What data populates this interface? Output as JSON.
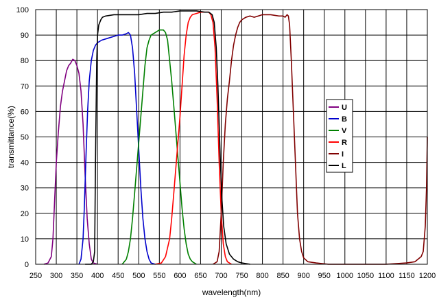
{
  "chart_data": {
    "type": "line",
    "title": "",
    "xlabel": "wavelength(nm)",
    "ylabel": "transmittance(%)",
    "xlim": [
      250,
      1200
    ],
    "ylim": [
      0,
      100
    ],
    "x_ticks": [
      "250",
      "300",
      "350",
      "400",
      "450",
      "500",
      "550",
      "600",
      "650",
      "700",
      "750",
      "800",
      "850",
      "900",
      "950",
      "1000",
      "1050",
      "1100",
      "1150",
      "1200"
    ],
    "y_ticks": [
      "0",
      "10",
      "20",
      "30",
      "40",
      "50",
      "60",
      "70",
      "80",
      "90",
      "100"
    ],
    "grid": true,
    "legend_position": "right",
    "series": [
      {
        "name": "U",
        "color": "#800080",
        "points": [
          [
            270,
            0
          ],
          [
            280,
            0.5
          ],
          [
            288,
            3
          ],
          [
            292,
            10
          ],
          [
            296,
            25
          ],
          [
            300,
            40
          ],
          [
            305,
            52
          ],
          [
            310,
            62
          ],
          [
            315,
            68
          ],
          [
            320,
            72
          ],
          [
            325,
            76
          ],
          [
            330,
            78
          ],
          [
            335,
            79
          ],
          [
            340,
            80.5
          ],
          [
            345,
            80
          ],
          [
            350,
            78
          ],
          [
            355,
            75
          ],
          [
            360,
            68
          ],
          [
            365,
            55
          ],
          [
            370,
            35
          ],
          [
            375,
            18
          ],
          [
            380,
            8
          ],
          [
            385,
            2
          ],
          [
            390,
            0.5
          ],
          [
            400,
            0
          ]
        ]
      },
      {
        "name": "B",
        "color": "#0000cc",
        "points": [
          [
            355,
            0
          ],
          [
            360,
            2
          ],
          [
            365,
            10
          ],
          [
            368,
            22
          ],
          [
            372,
            42
          ],
          [
            376,
            60
          ],
          [
            380,
            72
          ],
          [
            385,
            80
          ],
          [
            390,
            84
          ],
          [
            395,
            86
          ],
          [
            400,
            87
          ],
          [
            410,
            88
          ],
          [
            420,
            88.5
          ],
          [
            430,
            89
          ],
          [
            440,
            89.5
          ],
          [
            450,
            90
          ],
          [
            460,
            90
          ],
          [
            470,
            90.5
          ],
          [
            475,
            91
          ],
          [
            480,
            90
          ],
          [
            485,
            85
          ],
          [
            490,
            75
          ],
          [
            495,
            60
          ],
          [
            500,
            45
          ],
          [
            505,
            30
          ],
          [
            510,
            18
          ],
          [
            515,
            10
          ],
          [
            520,
            5
          ],
          [
            525,
            2
          ],
          [
            530,
            0.5
          ],
          [
            540,
            0
          ]
        ]
      },
      {
        "name": "V",
        "color": "#008000",
        "points": [
          [
            460,
            0
          ],
          [
            470,
            2
          ],
          [
            475,
            5
          ],
          [
            480,
            10
          ],
          [
            485,
            18
          ],
          [
            490,
            28
          ],
          [
            495,
            38
          ],
          [
            500,
            48
          ],
          [
            505,
            58
          ],
          [
            510,
            68
          ],
          [
            515,
            78
          ],
          [
            520,
            85
          ],
          [
            525,
            88
          ],
          [
            530,
            90
          ],
          [
            540,
            91
          ],
          [
            550,
            92
          ],
          [
            560,
            92
          ],
          [
            565,
            91
          ],
          [
            570,
            88
          ],
          [
            575,
            80
          ],
          [
            580,
            72
          ],
          [
            585,
            62
          ],
          [
            590,
            52
          ],
          [
            595,
            42
          ],
          [
            600,
            32
          ],
          [
            605,
            22
          ],
          [
            610,
            14
          ],
          [
            615,
            8
          ],
          [
            620,
            4
          ],
          [
            625,
            2
          ],
          [
            630,
            1
          ],
          [
            640,
            0
          ]
        ]
      },
      {
        "name": "R",
        "color": "#ff0000",
        "points": [
          [
            540,
            0
          ],
          [
            555,
            0.5
          ],
          [
            565,
            3
          ],
          [
            575,
            10
          ],
          [
            580,
            18
          ],
          [
            585,
            28
          ],
          [
            590,
            38
          ],
          [
            595,
            48
          ],
          [
            600,
            58
          ],
          [
            605,
            70
          ],
          [
            610,
            82
          ],
          [
            615,
            90
          ],
          [
            620,
            95
          ],
          [
            625,
            97
          ],
          [
            630,
            98
          ],
          [
            640,
            98.5
          ],
          [
            650,
            99
          ],
          [
            660,
            99
          ],
          [
            670,
            99
          ],
          [
            675,
            98
          ],
          [
            680,
            95
          ],
          [
            685,
            85
          ],
          [
            690,
            65
          ],
          [
            695,
            40
          ],
          [
            700,
            20
          ],
          [
            705,
            8
          ],
          [
            710,
            3
          ],
          [
            715,
            1
          ],
          [
            725,
            0
          ]
        ]
      },
      {
        "name": "I",
        "color": "#800000",
        "points": [
          [
            680,
            0
          ],
          [
            690,
            1
          ],
          [
            695,
            5
          ],
          [
            700,
            20
          ],
          [
            705,
            40
          ],
          [
            710,
            55
          ],
          [
            715,
            65
          ],
          [
            720,
            72
          ],
          [
            725,
            80
          ],
          [
            730,
            86
          ],
          [
            735,
            90
          ],
          [
            740,
            93
          ],
          [
            745,
            95
          ],
          [
            750,
            96
          ],
          [
            760,
            97
          ],
          [
            770,
            97.5
          ],
          [
            780,
            97
          ],
          [
            790,
            97.5
          ],
          [
            800,
            98
          ],
          [
            820,
            98
          ],
          [
            840,
            97.5
          ],
          [
            850,
            97.5
          ],
          [
            855,
            97
          ],
          [
            860,
            98
          ],
          [
            863,
            97.5
          ],
          [
            866,
            94
          ],
          [
            870,
            80
          ],
          [
            875,
            60
          ],
          [
            880,
            40
          ],
          [
            885,
            20
          ],
          [
            890,
            10
          ],
          [
            895,
            5
          ],
          [
            900,
            2.5
          ],
          [
            910,
            1
          ],
          [
            930,
            0.5
          ],
          [
            960,
            0
          ],
          [
            1000,
            0
          ],
          [
            1100,
            0
          ],
          [
            1150,
            0.5
          ],
          [
            1170,
            1
          ],
          [
            1185,
            3
          ],
          [
            1190,
            5
          ],
          [
            1195,
            15
          ],
          [
            1198,
            30
          ],
          [
            1200,
            50
          ]
        ]
      },
      {
        "name": "L",
        "color": "#000000",
        "points": [
          [
            370,
            0
          ],
          [
            385,
            0
          ],
          [
            390,
            1
          ],
          [
            393,
            5
          ],
          [
            395,
            40
          ],
          [
            398,
            80
          ],
          [
            400,
            90
          ],
          [
            403,
            94
          ],
          [
            408,
            96
          ],
          [
            412,
            97
          ],
          [
            420,
            97.5
          ],
          [
            440,
            98
          ],
          [
            460,
            98
          ],
          [
            480,
            98
          ],
          [
            500,
            98
          ],
          [
            520,
            98.5
          ],
          [
            540,
            98.5
          ],
          [
            560,
            99
          ],
          [
            580,
            99
          ],
          [
            600,
            99.5
          ],
          [
            620,
            99.5
          ],
          [
            640,
            99.5
          ],
          [
            660,
            99
          ],
          [
            670,
            99
          ],
          [
            678,
            98
          ],
          [
            683,
            95
          ],
          [
            688,
            85
          ],
          [
            692,
            70
          ],
          [
            695,
            55
          ],
          [
            698,
            40
          ],
          [
            702,
            25
          ],
          [
            706,
            15
          ],
          [
            712,
            8
          ],
          [
            720,
            4
          ],
          [
            730,
            2
          ],
          [
            740,
            1
          ],
          [
            750,
            0.5
          ],
          [
            770,
            0
          ]
        ]
      }
    ]
  }
}
